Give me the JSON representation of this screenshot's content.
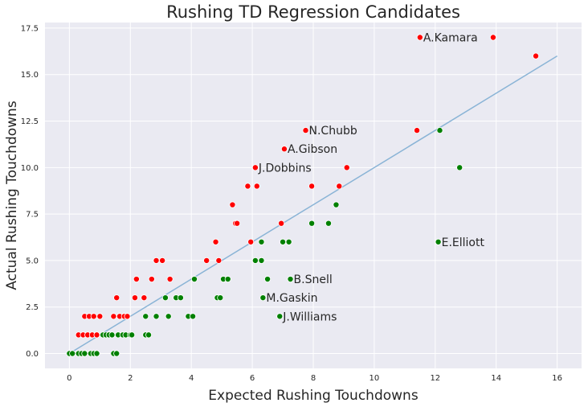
{
  "chart_data": {
    "type": "scatter",
    "title": "Rushing TD Regression Candidates",
    "xlabel": "Expected Rushing Touchdowns",
    "ylabel": "Actual Rushing Touchdowns",
    "xlim": [
      -0.8,
      16.8
    ],
    "ylim": [
      -0.8,
      17.8
    ],
    "x_ticks": [
      0,
      2,
      4,
      6,
      8,
      10,
      12,
      14,
      16
    ],
    "y_ticks": [
      0.0,
      2.5,
      5.0,
      7.5,
      10.0,
      12.5,
      15.0,
      17.5
    ],
    "x_tick_labels": [
      "0",
      "2",
      "4",
      "6",
      "8",
      "10",
      "12",
      "14",
      "16"
    ],
    "y_tick_labels": [
      "0.0",
      "2.5",
      "5.0",
      "7.5",
      "10.0",
      "12.5",
      "15.0",
      "17.5"
    ],
    "grid": true,
    "background_color": "#eaeaf2",
    "colors": {
      "over": "#ff0000",
      "under": "#008000",
      "line": "#8ab4d6"
    },
    "trend_line": {
      "x": [
        0,
        16
      ],
      "y": [
        0,
        16
      ]
    },
    "series": [
      {
        "color": "#ff0000",
        "points": [
          [
            0.3,
            1
          ],
          [
            0.45,
            1
          ],
          [
            0.5,
            2
          ],
          [
            0.6,
            1
          ],
          [
            0.65,
            2
          ],
          [
            0.75,
            1
          ],
          [
            0.8,
            2
          ],
          [
            0.9,
            1
          ],
          [
            1.0,
            2
          ],
          [
            1.45,
            2
          ],
          [
            1.55,
            3
          ],
          [
            1.65,
            2
          ],
          [
            1.8,
            2
          ],
          [
            1.9,
            2
          ],
          [
            2.15,
            3
          ],
          [
            2.2,
            4
          ],
          [
            2.45,
            3
          ],
          [
            2.7,
            4
          ],
          [
            2.85,
            5
          ],
          [
            3.05,
            5
          ],
          [
            3.3,
            4
          ],
          [
            4.5,
            5
          ],
          [
            4.8,
            6
          ],
          [
            4.9,
            5
          ],
          [
            5.35,
            8
          ],
          [
            5.45,
            7
          ],
          [
            5.5,
            7
          ],
          [
            5.85,
            9
          ],
          [
            5.95,
            6
          ],
          [
            6.1,
            10
          ],
          [
            6.15,
            9
          ],
          [
            6.95,
            7
          ],
          [
            7.05,
            11
          ],
          [
            7.75,
            12
          ],
          [
            7.95,
            9
          ],
          [
            8.85,
            9
          ],
          [
            9.1,
            10
          ],
          [
            11.4,
            12
          ],
          [
            11.5,
            17
          ],
          [
            13.9,
            17
          ],
          [
            15.3,
            16
          ]
        ]
      },
      {
        "color": "#008000",
        "points": [
          [
            0.0,
            0
          ],
          [
            0.1,
            0
          ],
          [
            0.3,
            0
          ],
          [
            0.4,
            0
          ],
          [
            0.5,
            0
          ],
          [
            0.7,
            0
          ],
          [
            0.8,
            0
          ],
          [
            0.9,
            0
          ],
          [
            1.1,
            1
          ],
          [
            1.2,
            1
          ],
          [
            1.3,
            1
          ],
          [
            1.4,
            1
          ],
          [
            1.45,
            0
          ],
          [
            1.55,
            0
          ],
          [
            1.6,
            1
          ],
          [
            1.75,
            1
          ],
          [
            1.85,
            1
          ],
          [
            2.0,
            1
          ],
          [
            2.05,
            1
          ],
          [
            2.5,
            1
          ],
          [
            2.5,
            2
          ],
          [
            2.6,
            1
          ],
          [
            2.85,
            2
          ],
          [
            3.15,
            3
          ],
          [
            3.25,
            2
          ],
          [
            3.5,
            3
          ],
          [
            3.65,
            3
          ],
          [
            3.9,
            2
          ],
          [
            4.05,
            2
          ],
          [
            4.1,
            4
          ],
          [
            4.85,
            3
          ],
          [
            4.95,
            3
          ],
          [
            5.05,
            4
          ],
          [
            5.2,
            4
          ],
          [
            6.1,
            5
          ],
          [
            6.3,
            5
          ],
          [
            6.3,
            6
          ],
          [
            6.35,
            3
          ],
          [
            6.5,
            4
          ],
          [
            6.9,
            2
          ],
          [
            7.0,
            6
          ],
          [
            7.2,
            6
          ],
          [
            7.25,
            4
          ],
          [
            7.95,
            7
          ],
          [
            8.5,
            7
          ],
          [
            8.75,
            8
          ],
          [
            12.1,
            6
          ],
          [
            12.15,
            12
          ],
          [
            12.8,
            10
          ]
        ]
      }
    ],
    "annotations": [
      {
        "text": "A.Kamara",
        "x": 11.5,
        "y": 17
      },
      {
        "text": "N.Chubb",
        "x": 7.75,
        "y": 12
      },
      {
        "text": "A.Gibson",
        "x": 7.05,
        "y": 11
      },
      {
        "text": "J.Dobbins",
        "x": 6.1,
        "y": 10
      },
      {
        "text": "E.Elliott",
        "x": 12.1,
        "y": 6
      },
      {
        "text": "B.Snell",
        "x": 7.25,
        "y": 4
      },
      {
        "text": "M.Gaskin",
        "x": 6.35,
        "y": 3
      },
      {
        "text": "J.Williams",
        "x": 6.9,
        "y": 2
      }
    ]
  }
}
